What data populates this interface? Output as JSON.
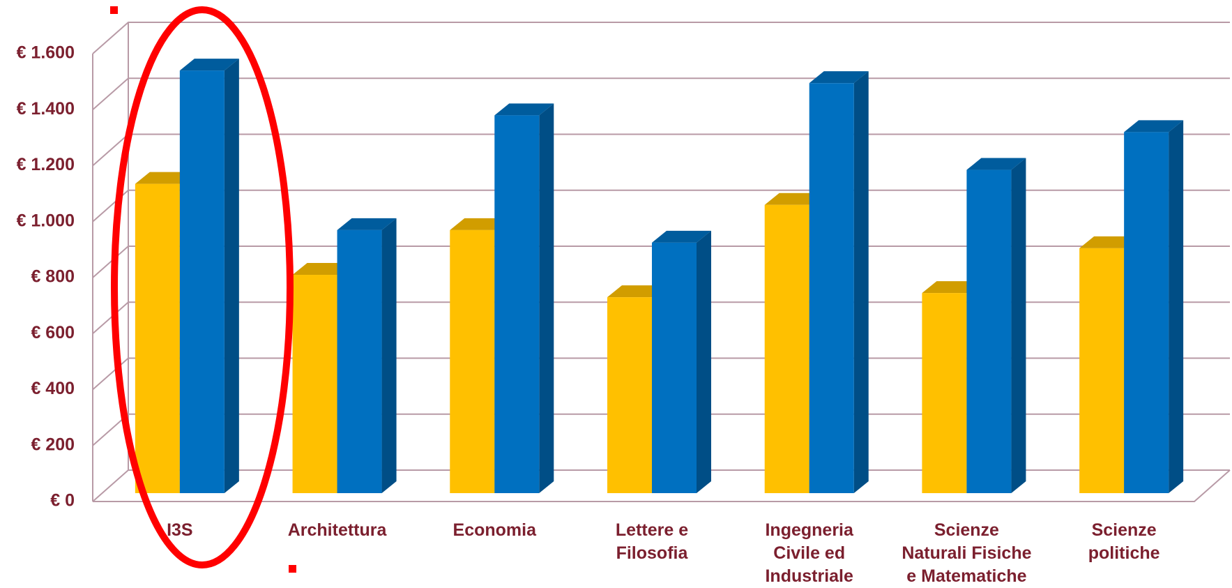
{
  "chart_data": {
    "type": "bar3d",
    "categories": [
      "I3S",
      "Architettura",
      "Economia",
      "Lettere e\nFilosofia",
      "Ingegneria\nCivile ed\nIndustriale",
      "Scienze\nNaturali Fisiche\ne Matematiche",
      "Scienze\npolitiche"
    ],
    "series": [
      {
        "color": "#ffc000",
        "values": [
          1105,
          780,
          940,
          700,
          1030,
          715,
          875
        ]
      },
      {
        "color": "#0070c0",
        "values": [
          1510,
          940,
          1350,
          895,
          1465,
          1155,
          1290
        ]
      }
    ],
    "ylim": [
      0,
      1600
    ],
    "yticks": [
      {
        "value": 0,
        "label": "€ 0"
      },
      {
        "value": 200,
        "label": "€ 200"
      },
      {
        "value": 400,
        "label": "€ 400"
      },
      {
        "value": 600,
        "label": "€ 600"
      },
      {
        "value": 800,
        "label": "€ 800"
      },
      {
        "value": 1000,
        "label": "€ 1.000"
      },
      {
        "value": 1200,
        "label": "€ 1.200"
      },
      {
        "value": 1400,
        "label": "€ 1.400"
      },
      {
        "value": 1600,
        "label": "€ 1.600"
      }
    ],
    "grid": true
  }
}
